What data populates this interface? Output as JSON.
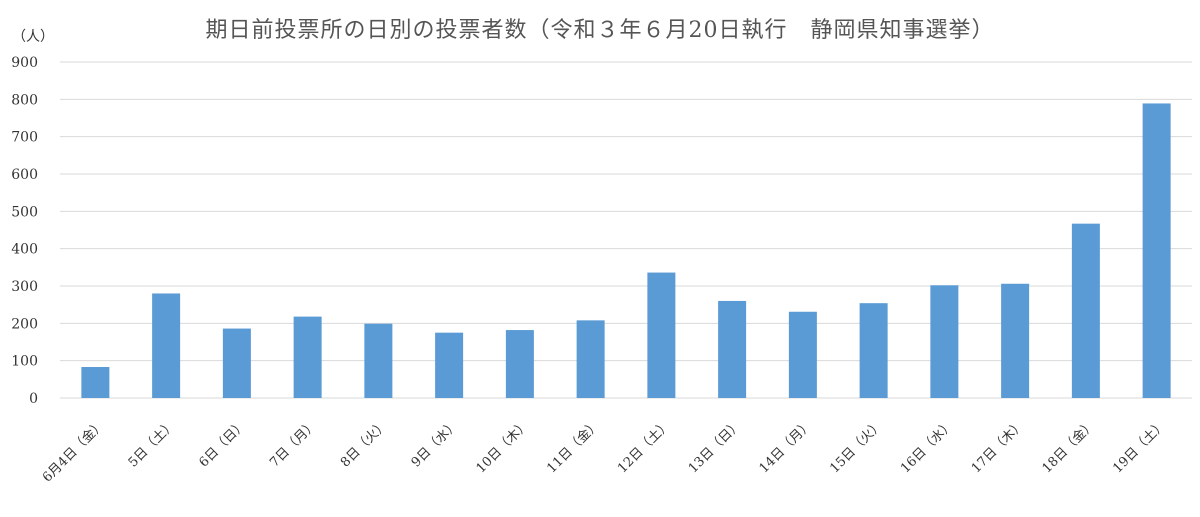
{
  "chart_data": {
    "type": "bar",
    "title": "期日前投票所の日別の投票者数（令和３年６月20日執行　静岡県知事選挙）",
    "ylabel": "（人）",
    "xlabel": "",
    "ylim": [
      0,
      900
    ],
    "yticks": [
      0,
      100,
      200,
      300,
      400,
      500,
      600,
      700,
      800,
      900
    ],
    "grid": true,
    "legend": "none",
    "bar_color": "#5B9BD5",
    "categories": [
      "6月4日（金）",
      "5日（土）",
      "6日（日）",
      "7日（月）",
      "8日（火）",
      "9日（水）",
      "10日（木）",
      "11日（金）",
      "12日（土）",
      "13日（日）",
      "14日（月）",
      "15日（火）",
      "16日（水）",
      "17日（木）",
      "18日（金）",
      "19日（土）"
    ],
    "values": [
      83,
      280,
      186,
      218,
      199,
      175,
      182,
      208,
      336,
      260,
      231,
      254,
      302,
      306,
      467,
      789
    ]
  }
}
